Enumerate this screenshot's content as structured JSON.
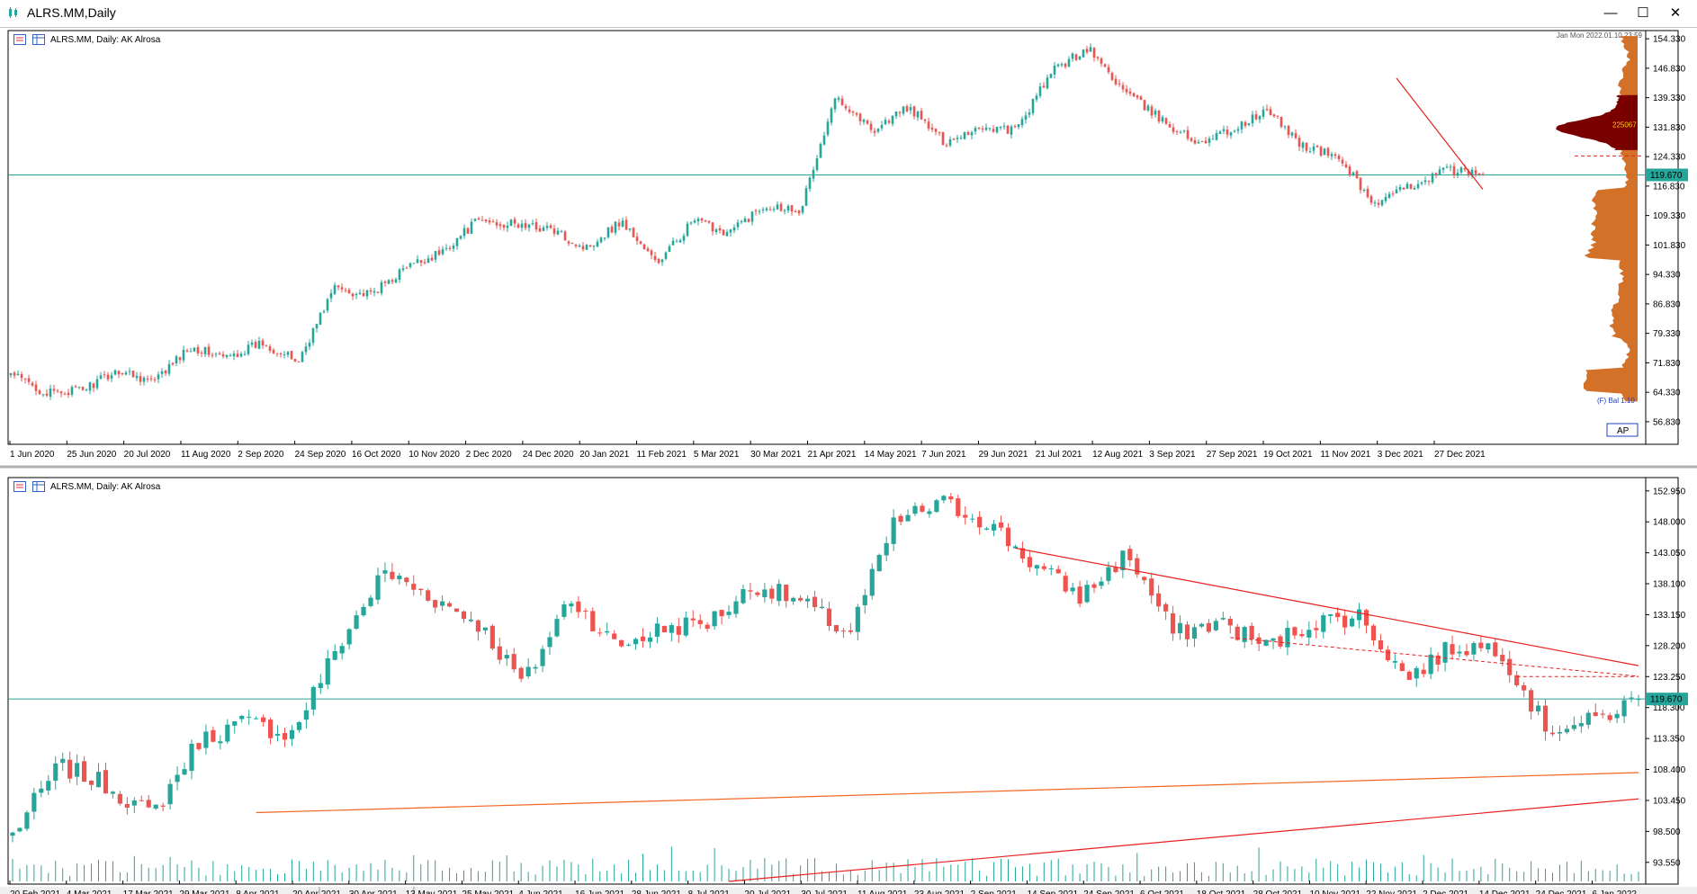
{
  "window": {
    "title": "ALRS.MM,Daily",
    "minimize_glyph": "—",
    "maximize_glyph": "☐",
    "close_glyph": "✕",
    "icon": "chart-app-icon"
  },
  "colors": {
    "bull": "#26a69a",
    "bear": "#ef5350",
    "trend_red": "#e8211f",
    "trend_orange": "#f26522",
    "hline": "#2aa198",
    "profile_orange": "#d2691e",
    "profile_dark": "#7a0000",
    "price_tag_bg": "#26a69a",
    "volume": "#26a69a"
  },
  "chart_data": [
    {
      "type": "candlestick",
      "symbol_label": "ALRS.MM, Daily:  AK Alrosa",
      "timestamp_label": "Jan Mon 2022.01.10 23:59",
      "bid_label": "(F) Bal 1.10",
      "ap_button_label": "AP",
      "current_price_label": "119.670",
      "current_price": 119.67,
      "point_value_label": "225067",
      "ylim": [
        52.0,
        155.5
      ],
      "y_ticks": [
        "154.330",
        "146.830",
        "139.330",
        "131.830",
        "124.330",
        "116.830",
        "109.330",
        "101.830",
        "94.330",
        "86.830",
        "79.330",
        "71.830",
        "64.330",
        "56.830"
      ],
      "x_ticks": [
        "1 Jun 2020",
        "25 Jun 2020",
        "20 Jul 2020",
        "11 Aug 2020",
        "2 Sep 2020",
        "24 Sep 2020",
        "16 Oct 2020",
        "10 Nov 2020",
        "2 Dec 2020",
        "24 Dec 2020",
        "20 Jan 2021",
        "11 Feb 2021",
        "5 Mar 2021",
        "30 Mar 2021",
        "21 Apr 2021",
        "14 May 2021",
        "7 Jun 2021",
        "29 Jun 2021",
        "21 Jul 2021",
        "12 Aug 2021",
        "3 Sep 2021",
        "27 Sep 2021",
        "19 Oct 2021",
        "11 Nov 2021",
        "3 Dec 2021",
        "27 Dec 2021"
      ],
      "n_bars": 410,
      "closes_anchor": [
        69,
        64,
        65,
        70,
        67,
        76,
        73,
        77,
        72,
        91,
        89,
        96,
        100,
        108,
        107,
        106,
        101,
        108,
        97,
        108,
        105,
        112,
        111,
        140,
        131,
        137,
        128,
        132,
        131,
        146,
        152,
        141,
        134,
        128,
        131,
        136,
        127,
        124,
        112,
        117,
        121,
        119.67
      ],
      "trendline": {
        "from": [
          385,
          144.3
        ],
        "to": [
          409,
          116.0
        ]
      },
      "volume_profile": {
        "price_min": 62.0,
        "price_max": 155.0,
        "width_max": 60
      }
    },
    {
      "type": "candlestick",
      "symbol_label": "ALRS.MM, Daily:  AK Alrosa",
      "current_price_label": "119.670",
      "current_price": 119.67,
      "ylim": [
        90.5,
        154.5
      ],
      "y_ticks": [
        "152.950",
        "148.000",
        "143.050",
        "138.100",
        "133.150",
        "128.200",
        "123.250",
        "118.300",
        "113.350",
        "108.400",
        "103.450",
        "98.500",
        "93.550"
      ],
      "x_ticks": [
        "20 Feb 2021",
        "4 Mar 2021",
        "17 Mar 2021",
        "29 Mar 2021",
        "8 Apr 2021",
        "20 Apr 2021",
        "30 Apr 2021",
        "13 May 2021",
        "25 May 2021",
        "4 Jun 2021",
        "16 Jun 2021",
        "28 Jun 2021",
        "8 Jul 2021",
        "20 Jul 2021",
        "30 Jul 2021",
        "11 Aug 2021",
        "23 Aug 2021",
        "2 Sep 2021",
        "14 Sep 2021",
        "24 Sep 2021",
        "6 Oct 2021",
        "18 Oct 2021",
        "28 Oct 2021",
        "10 Nov 2021",
        "22 Nov 2021",
        "2 Dec 2021",
        "14 Dec 2021",
        "24 Dec 2021",
        "6 Jan 2022"
      ],
      "n_bars": 228,
      "closes_anchor": [
        98,
        109,
        106,
        101,
        113,
        116,
        114,
        128,
        140,
        136,
        132,
        122,
        136,
        128,
        131,
        132,
        138,
        135,
        130,
        148,
        151,
        148,
        141,
        136,
        143,
        130,
        132,
        128,
        132,
        133,
        123,
        128,
        128,
        115,
        116,
        119.67
      ],
      "trendlines": [
        {
          "from": [
            140,
            143.8
          ],
          "to": [
            227,
            125.0
          ],
          "color": "trend_red"
        },
        {
          "from": [
            34,
            101.5
          ],
          "to": [
            227,
            107.9
          ],
          "color": "trend_orange"
        },
        {
          "from": [
            100,
            90.5
          ],
          "to": [
            227,
            103.7
          ],
          "color": "trend_red"
        }
      ]
    }
  ]
}
